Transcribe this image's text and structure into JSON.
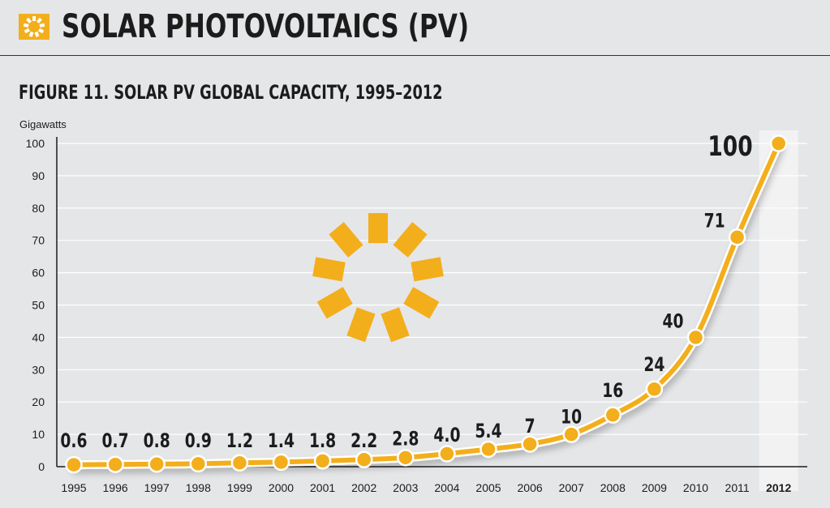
{
  "header": {
    "title": "SOLAR PHOTOVOLTAICS (PV)",
    "icon": "sun-icon"
  },
  "colors": {
    "accent": "#f3ae1c",
    "background": "#e5e6e8",
    "text": "#1c1c1c",
    "highlight": "#f2f2f3"
  },
  "chart_data": {
    "type": "line",
    "title": "FIGURE 11. SOLAR PV GLOBAL CAPACITY, 1995–2012",
    "ylabel": "Gigawatts",
    "xlabel": "",
    "ylim": [
      0,
      100
    ],
    "yticks": [
      0,
      10,
      20,
      30,
      40,
      50,
      60,
      70,
      80,
      90,
      100
    ],
    "grid": true,
    "categories": [
      "1995",
      "1996",
      "1997",
      "1998",
      "1999",
      "2000",
      "2001",
      "2002",
      "2003",
      "2004",
      "2005",
      "2006",
      "2007",
      "2008",
      "2009",
      "2010",
      "2011",
      "2012"
    ],
    "values": [
      0.6,
      0.7,
      0.8,
      0.9,
      1.2,
      1.4,
      1.8,
      2.2,
      2.8,
      4.0,
      5.4,
      7,
      10,
      16,
      24,
      40,
      71,
      100
    ],
    "data_labels": [
      "0.6",
      "0.7",
      "0.8",
      "0.9",
      "1.2",
      "1.4",
      "1.8",
      "2.2",
      "2.8",
      "4.0",
      "5.4",
      "7",
      "10",
      "16",
      "24",
      "40",
      "71",
      "100"
    ],
    "highlight_category": "2012"
  }
}
